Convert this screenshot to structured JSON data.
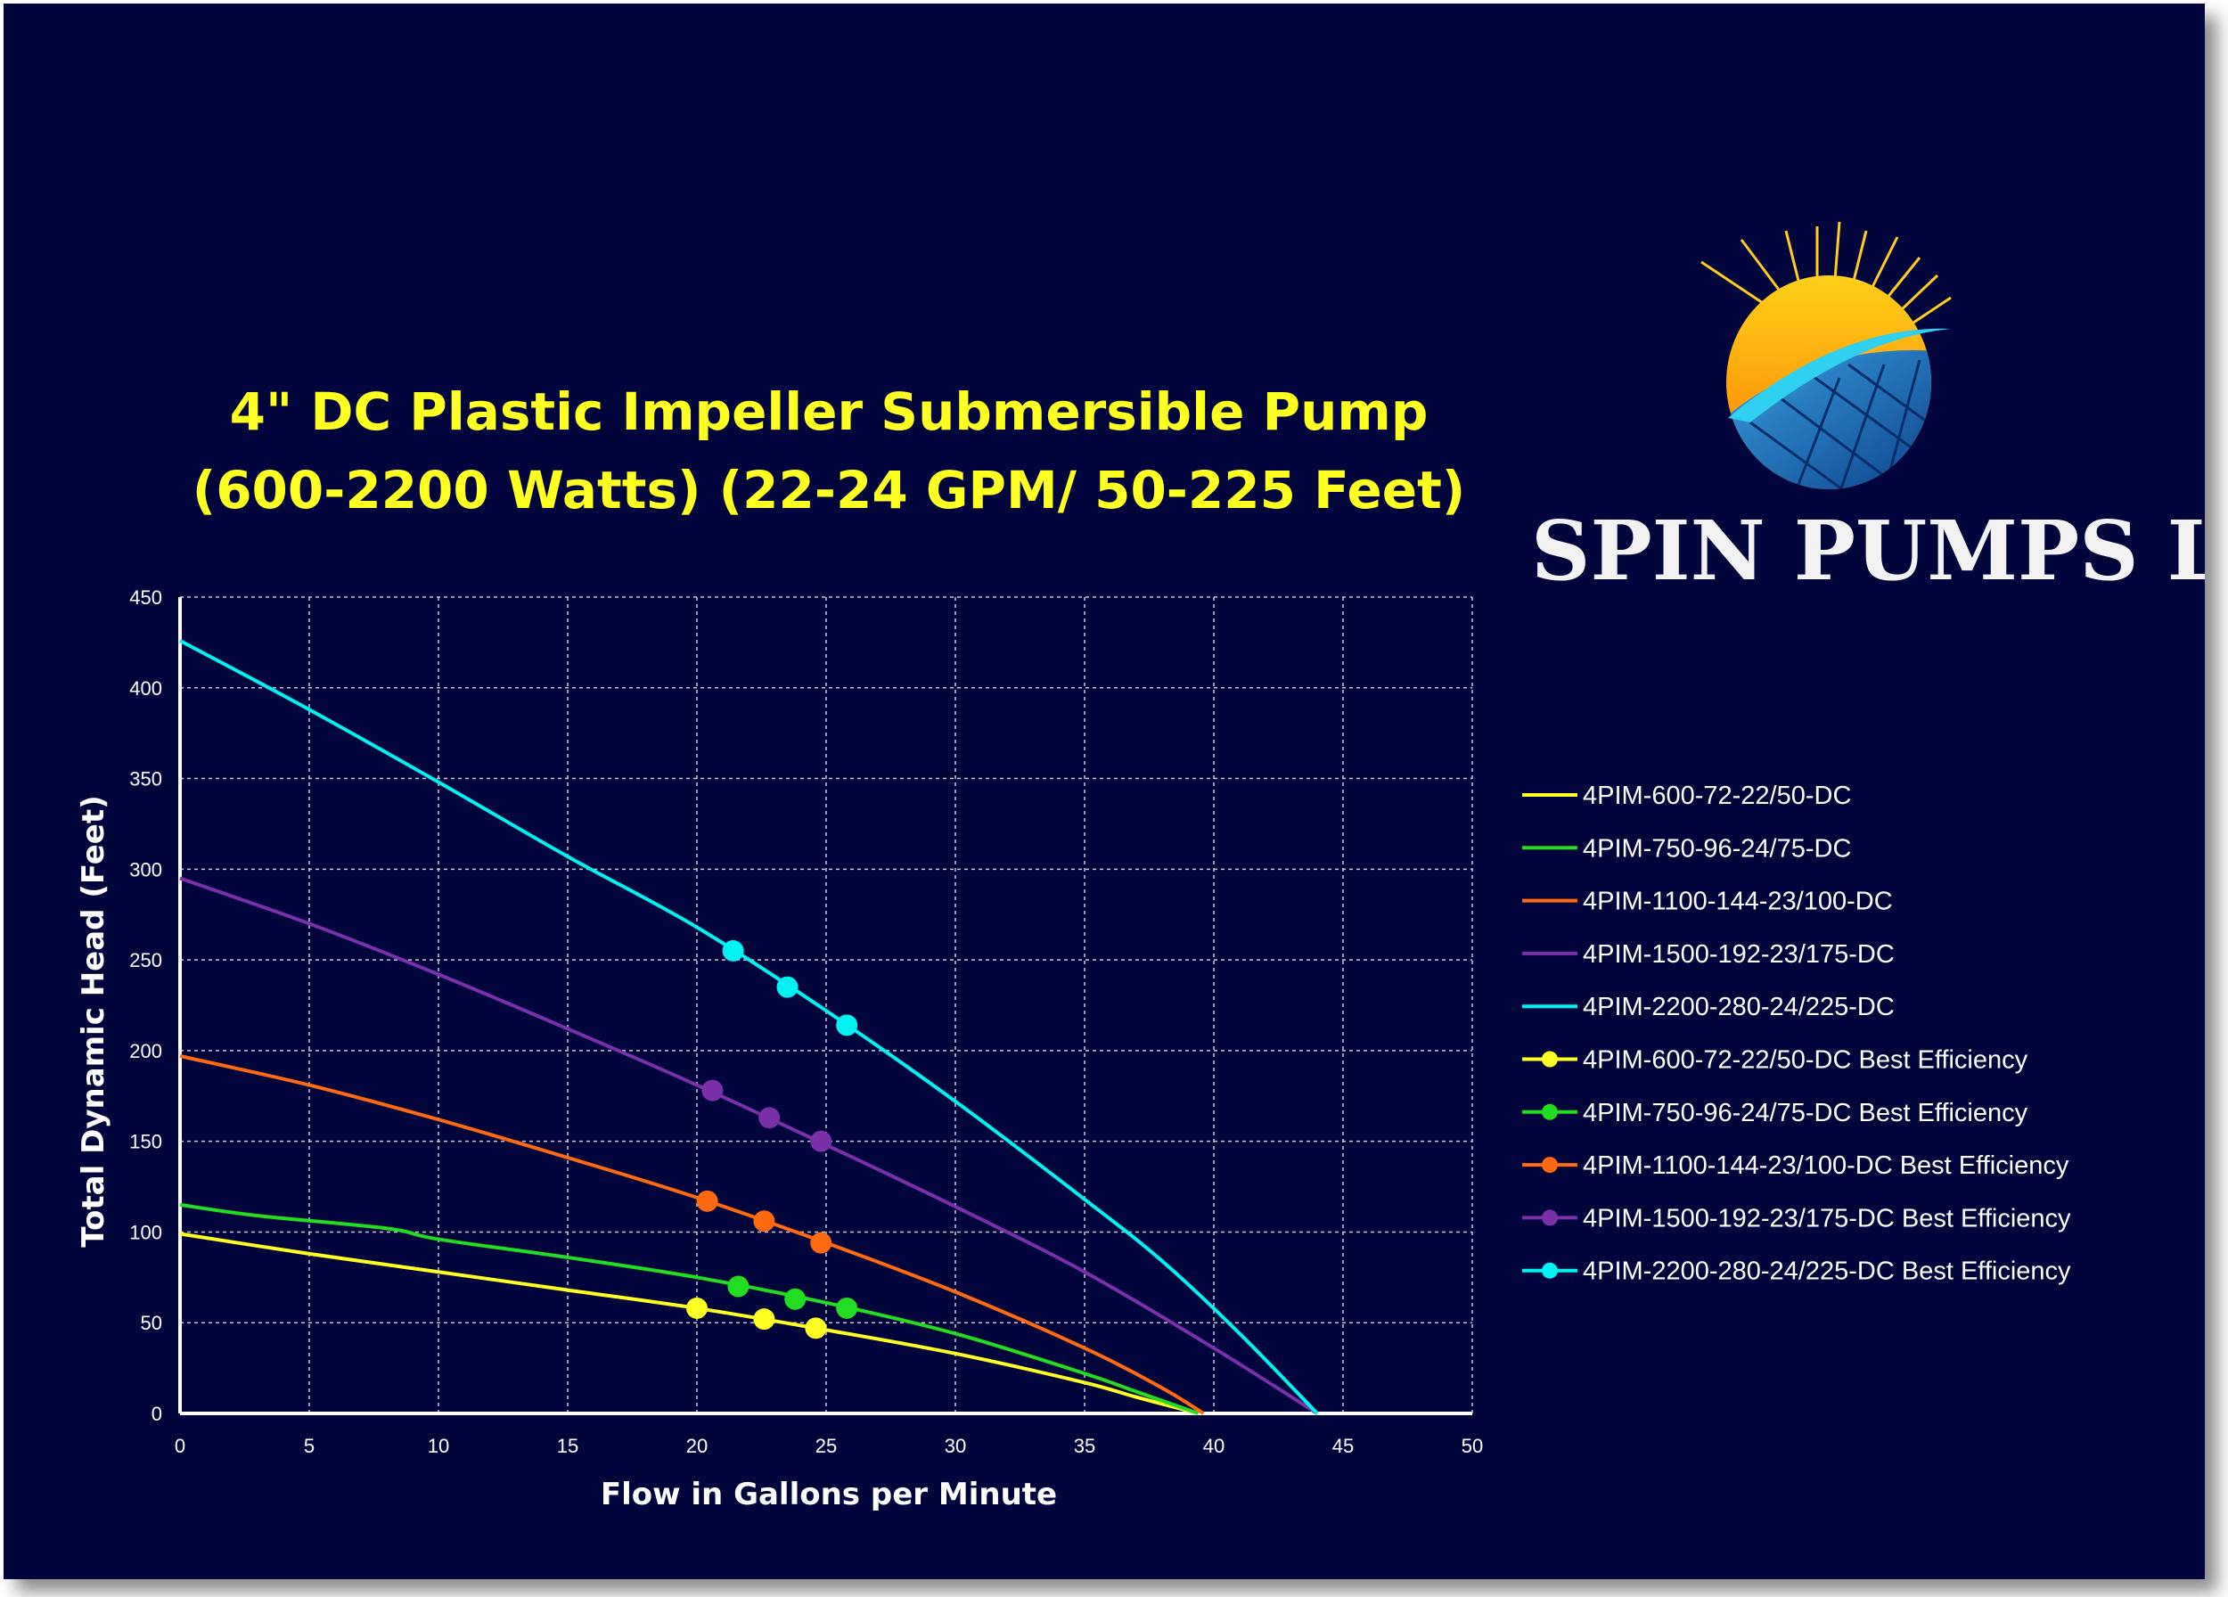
{
  "title_lines": [
    "4\" DC Plastic Impeller Submersible Pump",
    "(600-2200 Watts) (22-24 GPM/ 50-225 Feet)"
  ],
  "brand": {
    "name": "SPIN PUMPS LLC",
    "logo_icon": "sun-solar-panel-logo-icon"
  },
  "colors": {
    "background": "#02053b",
    "title": "#ffff22",
    "grid": "#c8c8d8"
  },
  "chart_data": {
    "type": "line",
    "title": "4\" DC Plastic Impeller Submersible Pump (600-2200 Watts) (22-24 GPM/ 50-225 Feet)",
    "xlabel": "Flow in Gallons per Minute",
    "ylabel": "Total Dynamic Head (Feet)",
    "xlim": [
      0,
      50
    ],
    "ylim": [
      0,
      450
    ],
    "xticks": [
      0,
      5,
      10,
      15,
      20,
      25,
      30,
      35,
      40,
      45,
      50
    ],
    "yticks": [
      0,
      50,
      100,
      150,
      200,
      250,
      300,
      350,
      400,
      450
    ],
    "grid": true,
    "legend_position": "right",
    "series": [
      {
        "name": "4PIM-600-72-22/50-DC",
        "color": "#ffff22",
        "kind": "line",
        "points": [
          [
            0,
            99
          ],
          [
            5,
            88
          ],
          [
            10,
            78
          ],
          [
            15,
            68
          ],
          [
            20,
            58
          ],
          [
            25,
            46
          ],
          [
            30,
            33
          ],
          [
            35,
            17
          ],
          [
            37,
            9
          ],
          [
            39.4,
            0
          ]
        ]
      },
      {
        "name": "4PIM-750-96-24/75-DC",
        "color": "#22dd22",
        "kind": "line",
        "points": [
          [
            0,
            115
          ],
          [
            3,
            109
          ],
          [
            8,
            102
          ],
          [
            10,
            96
          ],
          [
            15,
            86
          ],
          [
            20,
            75
          ],
          [
            25,
            61
          ],
          [
            30,
            44
          ],
          [
            35,
            22
          ],
          [
            37,
            12
          ],
          [
            39.4,
            0
          ]
        ]
      },
      {
        "name": "4PIM-1100-144-23/100-DC",
        "color": "#ff6a10",
        "kind": "line",
        "points": [
          [
            0,
            197
          ],
          [
            5,
            181
          ],
          [
            10,
            162
          ],
          [
            15,
            141
          ],
          [
            20,
            119
          ],
          [
            25,
            94
          ],
          [
            30,
            67
          ],
          [
            35,
            36
          ],
          [
            38,
            14
          ],
          [
            39.6,
            0
          ]
        ]
      },
      {
        "name": "4PIM-1500-192-23/175-DC",
        "color": "#7a30a8",
        "kind": "line",
        "points": [
          [
            0,
            295
          ],
          [
            5,
            270
          ],
          [
            10,
            242
          ],
          [
            15,
            212
          ],
          [
            20,
            181
          ],
          [
            25,
            148
          ],
          [
            30,
            114
          ],
          [
            35,
            78
          ],
          [
            40,
            36
          ],
          [
            44,
            0
          ]
        ]
      },
      {
        "name": "4PIM-2200-280-24/225-DC",
        "color": "#00f2f2",
        "kind": "line",
        "points": [
          [
            0,
            426
          ],
          [
            5,
            388
          ],
          [
            10,
            348
          ],
          [
            15,
            307
          ],
          [
            20,
            268
          ],
          [
            25,
            222
          ],
          [
            30,
            172
          ],
          [
            35,
            118
          ],
          [
            38,
            84
          ],
          [
            41,
            44
          ],
          [
            44,
            0
          ]
        ]
      },
      {
        "name": "4PIM-600-72-22/50-DC Best Efficiency",
        "color": "#ffff22",
        "kind": "marker",
        "points": [
          [
            20,
            58
          ],
          [
            22.6,
            52
          ],
          [
            24.6,
            47
          ]
        ]
      },
      {
        "name": "4PIM-750-96-24/75-DC Best Efficiency",
        "color": "#22dd22",
        "kind": "marker",
        "points": [
          [
            21.6,
            70
          ],
          [
            23.8,
            63
          ],
          [
            25.8,
            58
          ]
        ]
      },
      {
        "name": "4PIM-1100-144-23/100-DC Best Efficiency",
        "color": "#ff6a10",
        "kind": "marker",
        "points": [
          [
            20.4,
            117
          ],
          [
            22.6,
            106
          ],
          [
            24.8,
            94
          ]
        ]
      },
      {
        "name": "4PIM-1500-192-23/175-DC Best Efficiency",
        "color": "#7a30a8",
        "kind": "marker",
        "points": [
          [
            20.6,
            178
          ],
          [
            22.8,
            163
          ],
          [
            24.8,
            150
          ]
        ]
      },
      {
        "name": "4PIM-2200-280-24/225-DC Best Efficiency",
        "color": "#00f2f2",
        "kind": "marker",
        "points": [
          [
            21.4,
            255
          ],
          [
            23.5,
            235
          ],
          [
            25.8,
            214
          ]
        ]
      }
    ]
  }
}
